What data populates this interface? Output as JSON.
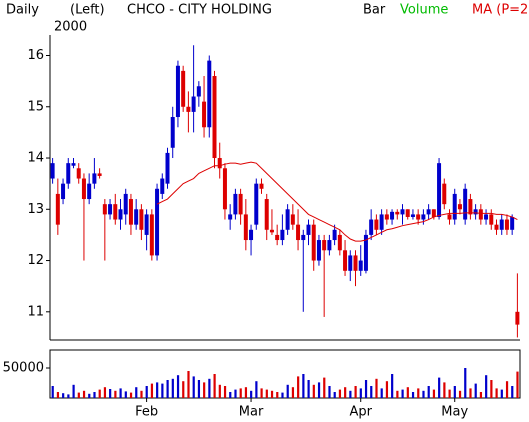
{
  "chart_data": {
    "type": "candlestick",
    "period": "Daily",
    "axis_side": "(Left)",
    "title": "CHCO - CITY HOLDING",
    "subtitle": "2000",
    "legend": [
      {
        "name": "Bar",
        "color": "#000000"
      },
      {
        "name": "Volume",
        "color": "#00bb00"
      },
      {
        "name": "MA (P=2",
        "color": "#dd0000"
      }
    ],
    "up_color": "#0000cc",
    "down_color": "#dd0000",
    "categories": [
      null,
      null,
      null,
      null,
      null,
      null,
      null,
      null,
      null,
      null,
      null,
      null,
      null,
      null,
      null,
      null,
      null,
      null,
      "Feb",
      null,
      null,
      null,
      null,
      null,
      null,
      null,
      null,
      null,
      null,
      null,
      null,
      null,
      null,
      null,
      null,
      null,
      null,
      null,
      "Mar",
      null,
      null,
      null,
      null,
      null,
      null,
      null,
      null,
      null,
      null,
      null,
      null,
      null,
      null,
      null,
      null,
      null,
      null,
      null,
      null,
      "Apr",
      null,
      null,
      null,
      null,
      null,
      null,
      null,
      null,
      null,
      null,
      null,
      null,
      null,
      null,
      null,
      null,
      null,
      "May",
      null,
      null,
      null,
      null,
      null,
      null,
      null,
      null,
      null,
      null,
      null,
      null
    ],
    "open": [
      13.6,
      13.3,
      13.2,
      13.5,
      13.85,
      13.8,
      13.6,
      13.2,
      13.5,
      13.7,
      13.1,
      12.9,
      13.1,
      12.8,
      12.9,
      13.2,
      12.7,
      13.0,
      12.5,
      12.9,
      12.1,
      13.3,
      13.5,
      14.2,
      14.8,
      15.7,
      15.0,
      14.9,
      15.2,
      15.1,
      14.6,
      15.6,
      14.0,
      13.8,
      12.8,
      12.9,
      13.3,
      12.9,
      12.4,
      12.7,
      13.5,
      13.2,
      12.6,
      12.5,
      12.4,
      12.6,
      12.9,
      12.7,
      12.4,
      12.5,
      12.7,
      12.0,
      12.4,
      12.2,
      12.4,
      12.5,
      12.2,
      11.8,
      12.1,
      11.8,
      11.8,
      12.5,
      12.8,
      12.6,
      12.9,
      12.8,
      12.95,
      12.9,
      13.0,
      12.85,
      12.9,
      12.8,
      12.9,
      13.0,
      12.85,
      13.5,
      12.9,
      12.8,
      13.1,
      12.8,
      13.2,
      12.9,
      13.0,
      12.8,
      12.9,
      12.7,
      12.6,
      12.8,
      12.6,
      11.0
    ],
    "high": [
      14.0,
      13.6,
      13.6,
      14.0,
      14.0,
      13.9,
      13.7,
      13.7,
      14.0,
      13.8,
      13.2,
      13.2,
      13.3,
      13.2,
      13.4,
      13.3,
      13.2,
      13.1,
      13.0,
      13.0,
      13.5,
      13.7,
      14.2,
      15.0,
      15.9,
      15.8,
      15.3,
      16.2,
      15.5,
      15.6,
      16.0,
      15.7,
      14.3,
      13.9,
      13.1,
      13.4,
      13.4,
      13.2,
      12.7,
      13.6,
      13.6,
      13.3,
      13.0,
      12.7,
      12.9,
      13.1,
      13.1,
      13.0,
      12.6,
      12.8,
      12.8,
      12.5,
      12.5,
      12.5,
      12.7,
      12.6,
      12.4,
      12.2,
      12.2,
      12.3,
      12.6,
      13.0,
      12.9,
      13.0,
      13.0,
      13.0,
      13.0,
      13.1,
      13.0,
      13.0,
      13.0,
      13.0,
      13.1,
      13.0,
      14.0,
      13.6,
      13.0,
      13.4,
      13.2,
      13.5,
      13.3,
      13.1,
      13.1,
      13.0,
      13.0,
      12.8,
      12.9,
      12.9,
      12.9,
      11.75
    ],
    "low": [
      13.5,
      12.5,
      13.1,
      13.4,
      13.8,
      13.5,
      12.0,
      13.1,
      13.4,
      13.6,
      12.0,
      12.8,
      12.7,
      12.6,
      12.7,
      12.5,
      12.6,
      12.4,
      12.2,
      12.0,
      12.0,
      13.2,
      13.4,
      14.0,
      14.6,
      14.9,
      14.5,
      14.5,
      15.0,
      14.4,
      14.4,
      13.8,
      13.6,
      12.8,
      12.6,
      12.8,
      12.7,
      12.2,
      12.1,
      12.6,
      13.3,
      12.4,
      12.5,
      12.3,
      12.3,
      12.5,
      12.6,
      12.2,
      11.0,
      12.3,
      11.8,
      11.9,
      10.9,
      12.1,
      12.3,
      12.1,
      11.7,
      11.6,
      11.5,
      11.7,
      11.75,
      12.4,
      12.5,
      12.5,
      12.7,
      12.7,
      12.8,
      12.7,
      12.8,
      12.8,
      12.7,
      12.7,
      12.8,
      12.8,
      12.8,
      13.0,
      12.7,
      12.7,
      12.9,
      12.7,
      12.8,
      12.8,
      12.7,
      12.7,
      12.6,
      12.5,
      12.5,
      12.5,
      12.5,
      10.5
    ],
    "close": [
      13.9,
      12.7,
      13.5,
      13.9,
      13.9,
      13.6,
      13.2,
      13.5,
      13.7,
      13.65,
      12.9,
      13.1,
      12.8,
      13.0,
      13.3,
      12.7,
      13.0,
      12.6,
      12.9,
      12.1,
      13.4,
      13.6,
      14.1,
      14.8,
      15.8,
      15.0,
      14.9,
      15.2,
      15.4,
      14.6,
      15.9,
      14.0,
      13.8,
      13.0,
      12.9,
      13.3,
      12.9,
      12.4,
      12.6,
      13.5,
      13.4,
      12.6,
      12.55,
      12.4,
      12.6,
      13.0,
      12.7,
      12.4,
      12.5,
      12.7,
      12.0,
      12.4,
      12.2,
      12.4,
      12.6,
      12.2,
      11.8,
      12.1,
      11.8,
      12.0,
      12.5,
      12.8,
      12.6,
      12.9,
      12.8,
      12.95,
      12.9,
      13.0,
      12.85,
      12.9,
      12.8,
      12.9,
      13.0,
      12.85,
      13.9,
      13.1,
      12.8,
      13.3,
      13.0,
      13.4,
      12.9,
      13.0,
      12.8,
      12.9,
      12.7,
      12.6,
      12.8,
      12.6,
      12.85,
      10.75
    ],
    "ylim": [
      10.45,
      16.4
    ],
    "yticks": [
      11,
      12,
      13,
      14,
      15,
      16
    ],
    "ma": {
      "color": "#dd0000",
      "values": [
        null,
        null,
        null,
        null,
        null,
        null,
        null,
        null,
        null,
        null,
        null,
        null,
        null,
        null,
        null,
        null,
        null,
        null,
        null,
        null,
        13.1,
        13.15,
        13.2,
        13.3,
        13.4,
        13.5,
        13.55,
        13.6,
        13.7,
        13.75,
        13.8,
        13.85,
        13.85,
        13.88,
        13.9,
        13.9,
        13.88,
        13.9,
        13.92,
        13.9,
        13.8,
        13.7,
        13.6,
        13.5,
        13.4,
        13.3,
        13.2,
        13.1,
        13.0,
        12.9,
        12.85,
        12.8,
        12.75,
        12.7,
        12.65,
        12.6,
        12.5,
        12.42,
        12.38,
        12.38,
        12.4,
        12.45,
        12.5,
        12.55,
        12.6,
        12.62,
        12.65,
        12.68,
        12.7,
        12.72,
        12.74,
        12.76,
        12.8,
        12.85,
        12.88,
        12.9,
        12.92,
        12.92,
        12.92,
        12.93,
        12.93,
        12.93,
        12.92,
        12.92,
        12.92,
        12.9,
        12.9,
        12.88,
        12.85,
        12.8
      ]
    },
    "volume": {
      "values": [
        20000,
        10000,
        8000,
        6000,
        22000,
        9000,
        12000,
        7000,
        10000,
        14000,
        18000,
        15000,
        12000,
        16000,
        11000,
        9000,
        18000,
        12000,
        20000,
        24000,
        26000,
        24000,
        30000,
        32000,
        38000,
        28000,
        45000,
        36000,
        30000,
        26000,
        32000,
        40000,
        22000,
        20000,
        10000,
        14000,
        16000,
        18000,
        12000,
        28000,
        16000,
        14000,
        12000,
        10000,
        9000,
        22000,
        18000,
        36000,
        40000,
        30000,
        22000,
        26000,
        34000,
        20000,
        10000,
        14000,
        18000,
        12000,
        20000,
        16000,
        30000,
        20000,
        32000,
        16000,
        28000,
        40000,
        12000,
        14000,
        18000,
        10000,
        16000,
        12000,
        20000,
        14000,
        34000,
        26000,
        14000,
        20000,
        12000,
        50000,
        16000,
        24000,
        10000,
        38000,
        30000,
        16000,
        14000,
        28000,
        20000,
        44000
      ],
      "ylim": [
        0,
        80000
      ],
      "yticks": [
        50000
      ]
    }
  }
}
